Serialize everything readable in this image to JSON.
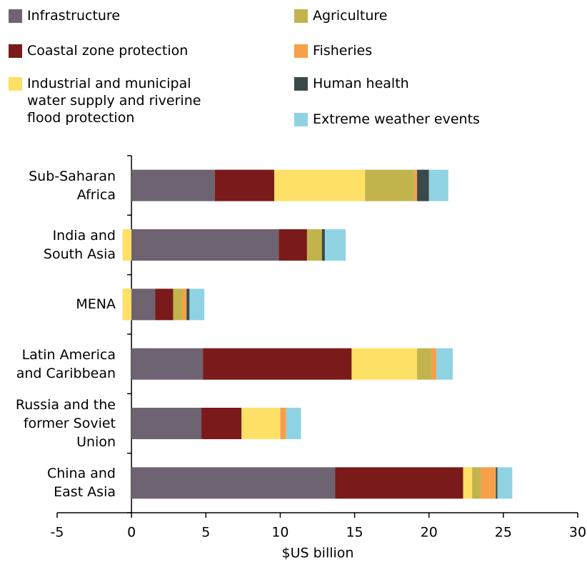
{
  "chart_data": {
    "type": "stacked-bar-horizontal",
    "categories": [
      "Sub-Saharan\nAfrica",
      "India and\nSouth Asia",
      "MENA",
      "Latin America\nand Caribbean",
      "Russia and the\nformer Soviet\nUnion",
      "China and\nEast Asia"
    ],
    "series": [
      {
        "name": "Infrastructure",
        "color": "#6e6370",
        "values": [
          5.6,
          9.9,
          1.6,
          4.8,
          4.7,
          13.7
        ]
      },
      {
        "name": "Coastal zone protection",
        "color": "#7a1a1a",
        "values": [
          4.0,
          1.9,
          1.2,
          10.0,
          2.7,
          8.6
        ]
      },
      {
        "name": "Industrial and municipal\nwater supply and riverine\nflood protection",
        "color": "#ffe066",
        "values": [
          6.1,
          -0.6,
          -0.6,
          4.4,
          2.6,
          0.6
        ]
      },
      {
        "name": "Agriculture",
        "color": "#c2b44c",
        "values": [
          3.3,
          1.0,
          0.6,
          1.0,
          0,
          0.6
        ]
      },
      {
        "name": "Fisheries",
        "color": "#f7a04a",
        "values": [
          0.2,
          0,
          0.3,
          0.3,
          0.4,
          1.0
        ]
      },
      {
        "name": "Human health",
        "color": "#3a4a4a",
        "values": [
          0.8,
          0.2,
          0.2,
          0,
          0,
          0.1
        ]
      },
      {
        "name": "Extreme weather events",
        "color": "#8fd3e3",
        "values": [
          1.3,
          1.4,
          1.0,
          1.1,
          1.0,
          1.0
        ]
      }
    ],
    "x_label": "$US billion",
    "xlim": [
      -5,
      30
    ],
    "xticks": [
      -5,
      0,
      5,
      10,
      15,
      20,
      25,
      30
    ]
  }
}
